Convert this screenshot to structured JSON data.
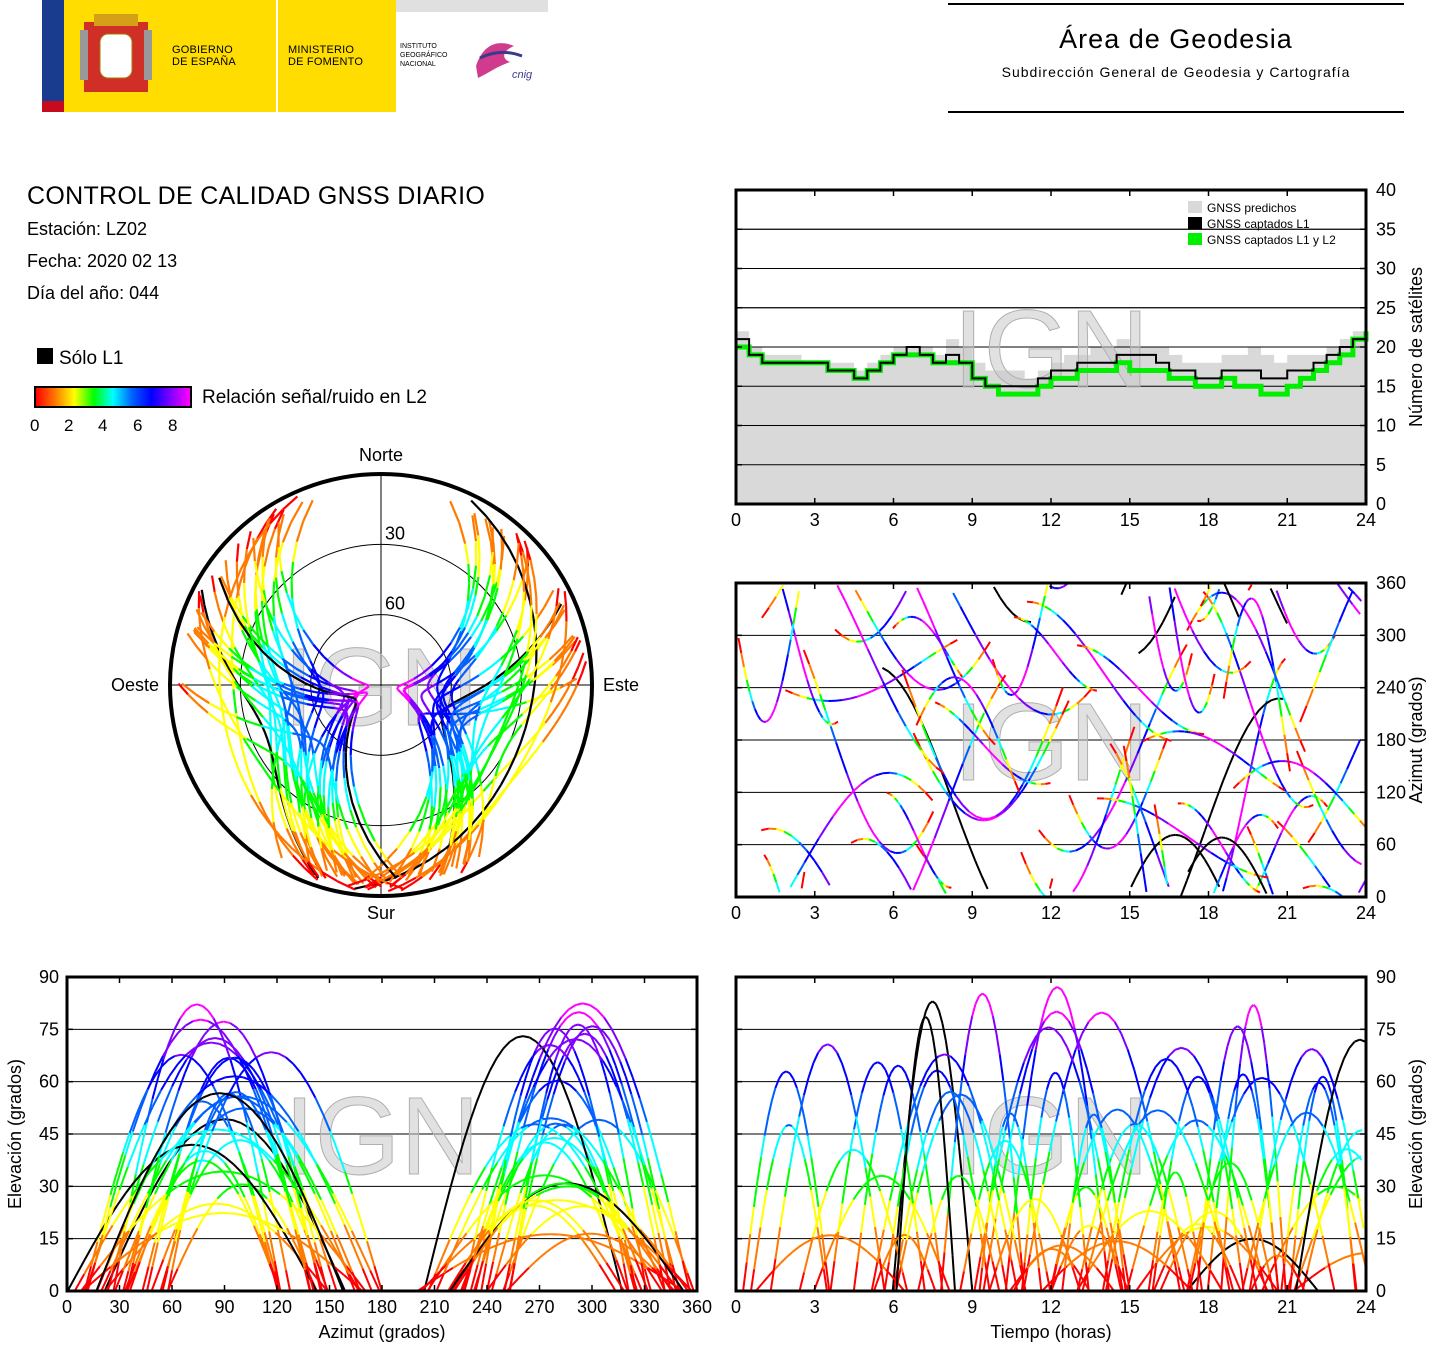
{
  "header": {
    "gov_text": "GOBIERNO\nDE ESPAÑA",
    "gov_line1": "GOBIERNO",
    "gov_line2": "DE ESPAÑA",
    "ministry_line1": "MINISTERIO",
    "ministry_line2": "DE FOMENTO",
    "institute_line1": "INSTITUTO",
    "institute_line2": "GEOGRÁFICO",
    "institute_line3": "NACIONAL",
    "cnig_logo_text": "cnig",
    "area_title": "Área de Geodesia",
    "area_subtitle": "Subdirección General de Geodesia y Cartografía"
  },
  "info": {
    "title": "CONTROL DE CALIDAD GNSS DIARIO",
    "station": "Estación: LZ02",
    "date": "Fecha: 2020 02 13",
    "doy": "Día del año: 044",
    "legend_l1": "Sólo L1",
    "legend_snr": "Relación señal/ruido en L2",
    "colorbar_ticks": [
      "0",
      "2",
      "4",
      "6",
      "8"
    ]
  },
  "watermark": "IGN",
  "colors": {
    "predicted": "#d9d9d9",
    "l1": "#000000",
    "l1l2": "#00ee00",
    "snr_scale": [
      "#ff0000",
      "#ff7a00",
      "#ffff00",
      "#00ff00",
      "#00ffff",
      "#0060ff",
      "#0000ff",
      "#8000ff",
      "#ff00ff"
    ]
  },
  "chart_data": [
    {
      "id": "satellite-count",
      "type": "area",
      "ylabel": "Número de satélites",
      "xlim": [
        0,
        24
      ],
      "ylim": [
        0,
        40
      ],
      "xticks": [
        "0",
        "3",
        "6",
        "9",
        "12",
        "15",
        "18",
        "21",
        "24"
      ],
      "yticks": [
        "0",
        "5",
        "10",
        "15",
        "20",
        "25",
        "30",
        "35",
        "40"
      ],
      "grid": true,
      "legend_placement": "top-right",
      "legend": [
        "GNSS predichos",
        "GNSS captados L1",
        "GNSS captados L1 y L2"
      ],
      "x": [
        0,
        0.5,
        1,
        1.5,
        2,
        2.5,
        3,
        3.5,
        4,
        4.5,
        5,
        5.5,
        6,
        6.5,
        7,
        7.5,
        8,
        8.5,
        9,
        9.5,
        10,
        10.5,
        11,
        11.5,
        12,
        12.5,
        13,
        13.5,
        14,
        14.5,
        15,
        15.5,
        16,
        16.5,
        17,
        17.5,
        18,
        18.5,
        19,
        19.5,
        20,
        20.5,
        21,
        21.5,
        22,
        22.5,
        23,
        23.5,
        24
      ],
      "series": [
        {
          "name": "GNSS predichos",
          "values": [
            22,
            20,
            19,
            19,
            19,
            18,
            18,
            18,
            18,
            17,
            18,
            19,
            20,
            20,
            20,
            19,
            21,
            20,
            18,
            17,
            17,
            17,
            16,
            17,
            18,
            19,
            19,
            20,
            20,
            21,
            20,
            20,
            20,
            19,
            18,
            18,
            18,
            19,
            19,
            20,
            19,
            18,
            19,
            19,
            19,
            20,
            21,
            22,
            23
          ]
        },
        {
          "name": "GNSS captados L1",
          "values": [
            21,
            19,
            18,
            18,
            18,
            18,
            18,
            17,
            17,
            16,
            17,
            18,
            19,
            20,
            19,
            18,
            19,
            18,
            16,
            15,
            15,
            15,
            15,
            16,
            17,
            17,
            18,
            18,
            18,
            19,
            19,
            19,
            18,
            17,
            17,
            16,
            16,
            17,
            17,
            17,
            16,
            16,
            17,
            17,
            18,
            19,
            20,
            21,
            22
          ]
        },
        {
          "name": "GNSS captados L1 y L2",
          "values": [
            20,
            19,
            18,
            18,
            18,
            18,
            18,
            17,
            17,
            16,
            17,
            18,
            19,
            19,
            19,
            18,
            18,
            18,
            16,
            15,
            14,
            14,
            14,
            15,
            16,
            16,
            17,
            17,
            17,
            18,
            17,
            17,
            17,
            16,
            16,
            15,
            15,
            16,
            15,
            15,
            14,
            14,
            15,
            16,
            17,
            18,
            19,
            21,
            22
          ]
        }
      ]
    },
    {
      "id": "skyplot",
      "type": "scatter",
      "projection": "polar",
      "compass": [
        "Norte",
        "Este",
        "Sur",
        "Oeste"
      ],
      "ring_labels": [
        "30",
        "60"
      ]
    },
    {
      "id": "azimuth-vs-time",
      "type": "scatter",
      "ylabel": "Azimut (grados)",
      "xlim": [
        0,
        24
      ],
      "ylim": [
        0,
        360
      ],
      "xticks": [
        "0",
        "3",
        "6",
        "9",
        "12",
        "15",
        "18",
        "21",
        "24"
      ],
      "yticks": [
        "0",
        "60",
        "120",
        "180",
        "240",
        "300",
        "360"
      ],
      "grid": true
    },
    {
      "id": "elevation-vs-azimuth",
      "type": "scatter",
      "xlabel": "Azimut (grados)",
      "ylabel": "Elevación (grados)",
      "xlim": [
        0,
        360
      ],
      "ylim": [
        0,
        90
      ],
      "xticks": [
        "0",
        "30",
        "60",
        "90",
        "120",
        "150",
        "180",
        "210",
        "240",
        "270",
        "300",
        "330",
        "360"
      ],
      "yticks": [
        "0",
        "15",
        "30",
        "45",
        "60",
        "75",
        "90"
      ],
      "grid": true
    },
    {
      "id": "elevation-vs-time",
      "type": "scatter",
      "xlabel": "Tiempo (horas)",
      "ylabel": "Elevación (grados)",
      "xlim": [
        0,
        24
      ],
      "ylim": [
        0,
        90
      ],
      "xticks": [
        "0",
        "3",
        "6",
        "9",
        "12",
        "15",
        "18",
        "21",
        "24"
      ],
      "yticks": [
        "0",
        "15",
        "30",
        "45",
        "60",
        "75",
        "90"
      ],
      "grid": true
    }
  ]
}
